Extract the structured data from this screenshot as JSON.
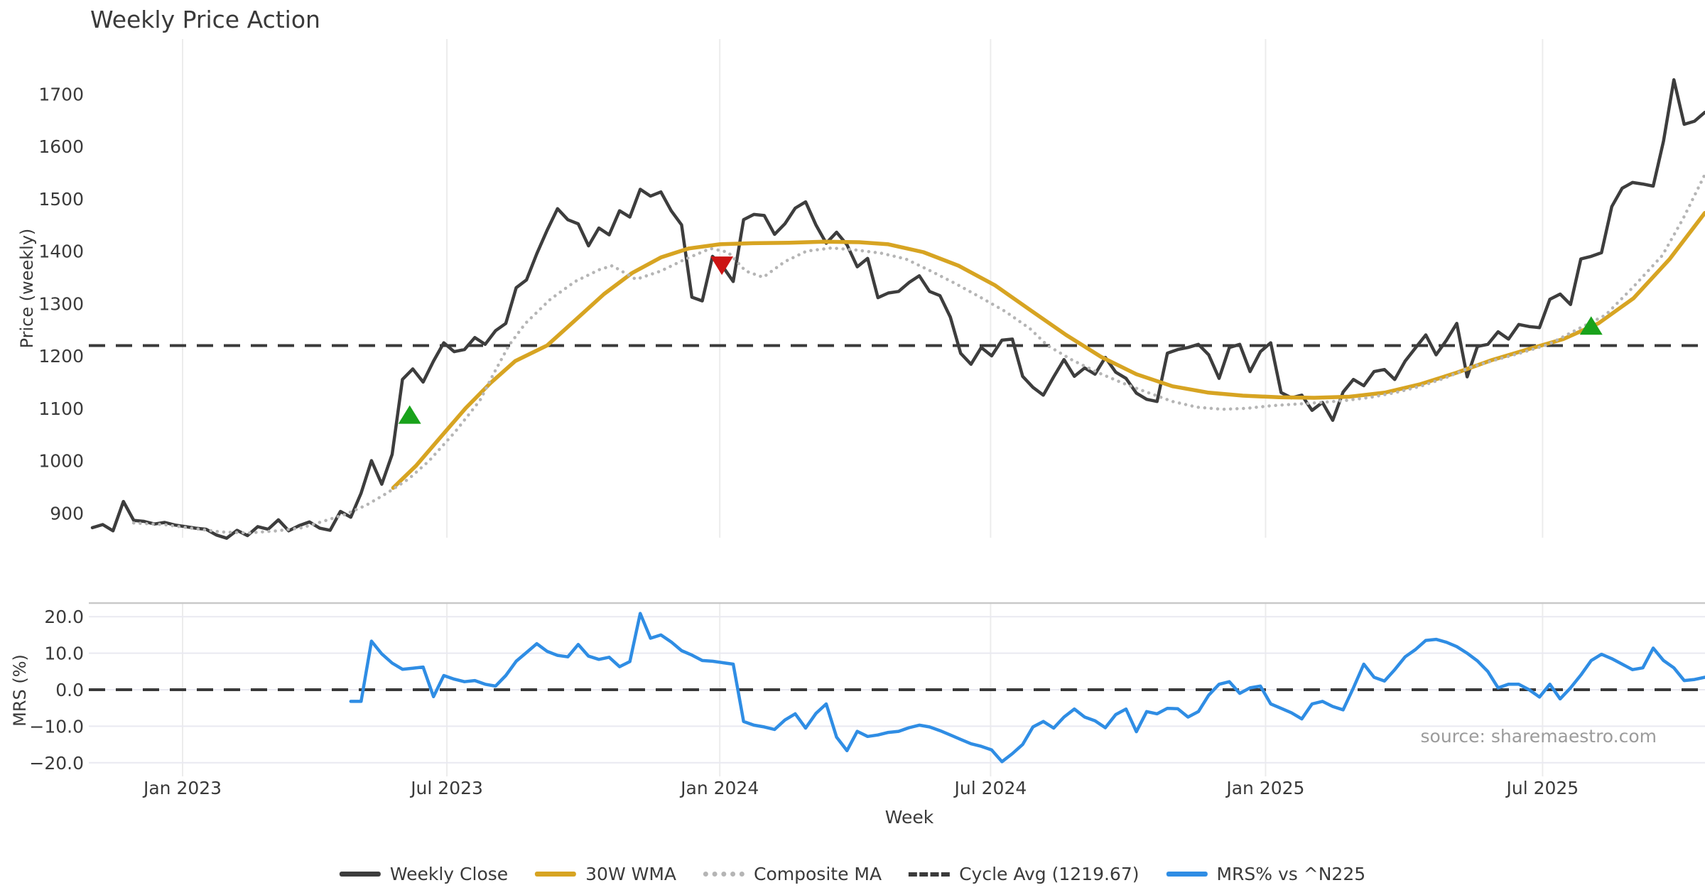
{
  "chart_data": {
    "type": "line",
    "title": "Weekly Price Action",
    "xlabel": "Week",
    "ylabel_top": "Price (weekly)",
    "ylabel_bottom": "MRS (%)",
    "source": "source: sharemaestro.com",
    "start_week": "2022-10-31",
    "weeks_total": 157,
    "ylim_top": [
      820,
      1760
    ],
    "ylim_bottom": [
      -24,
      24
    ],
    "grid": "vertical both panels, horizontal bottom panel",
    "legend_position": "bottom center",
    "cycle_avg": 1219.67,
    "x_ticks": [
      {
        "i": 8.73,
        "label": "Jan 2023"
      },
      {
        "i": 34.3,
        "label": "Jul 2023"
      },
      {
        "i": 60.7,
        "label": "Jan 2024"
      },
      {
        "i": 86.9,
        "label": "Jul 2024"
      },
      {
        "i": 113.5,
        "label": "Jan 2025"
      },
      {
        "i": 140.3,
        "label": "Jul 2025"
      }
    ],
    "y_ticks_top": [
      {
        "v": 900,
        "label": "900"
      },
      {
        "v": 1000,
        "label": "1000"
      },
      {
        "v": 1100,
        "label": "1100"
      },
      {
        "v": 1200,
        "label": "1200"
      },
      {
        "v": 1300,
        "label": "1300"
      },
      {
        "v": 1400,
        "label": "1400"
      },
      {
        "v": 1500,
        "label": "1500"
      },
      {
        "v": 1600,
        "label": "1600"
      },
      {
        "v": 1700,
        "label": "1700"
      }
    ],
    "y_ticks_bottom": [
      {
        "v": 20,
        "label": "20.0"
      },
      {
        "v": 10,
        "label": "10.0"
      },
      {
        "v": 0,
        "label": "0.0"
      },
      {
        "v": -10,
        "label": "−10.0"
      },
      {
        "v": -20,
        "label": "−20.0"
      }
    ],
    "legend": [
      {
        "label": "Weekly Close",
        "style": "solid",
        "color": "#3d3d3d"
      },
      {
        "label": "30W WMA",
        "style": "solid",
        "color": "#d7a422"
      },
      {
        "label": "Composite MA",
        "style": "dotted",
        "color": "#b5b5b5"
      },
      {
        "label": "Cycle Avg (1219.67)",
        "style": "dashed",
        "color": "#3a3a3a"
      },
      {
        "label": "MRS% vs ^N225",
        "style": "solid",
        "color": "#2f8de4"
      }
    ],
    "series": [
      {
        "name": "Weekly Close",
        "color": "#3d3d3d",
        "width": 4.5,
        "start_index": 0,
        "values": [
          872,
          878,
          866,
          922,
          886,
          884,
          879,
          882,
          877,
          874,
          871,
          869,
          858,
          852,
          867,
          857,
          874,
          869,
          887,
          866,
          876,
          883,
          871,
          867,
          903,
          892,
          938,
          1000,
          955,
          1012,
          1155,
          1175,
          1150,
          1190,
          1225,
          1208,
          1212,
          1235,
          1222,
          1248,
          1262,
          1330,
          1345,
          1395,
          1440,
          1481,
          1460,
          1452,
          1410,
          1444,
          1431,
          1477,
          1465,
          1518,
          1505,
          1513,
          1477,
          1450,
          1312,
          1305,
          1390,
          1370,
          1342,
          1460,
          1470,
          1468,
          1432,
          1452,
          1482,
          1494,
          1450,
          1415,
          1436,
          1412,
          1370,
          1386,
          1311,
          1320,
          1323,
          1340,
          1353,
          1323,
          1315,
          1274,
          1205,
          1184,
          1216,
          1200,
          1230,
          1232,
          1161,
          1140,
          1125,
          1160,
          1193,
          1161,
          1177,
          1165,
          1197,
          1169,
          1157,
          1129,
          1117,
          1113,
          1205,
          1212,
          1216,
          1222,
          1202,
          1157,
          1216,
          1222,
          1170,
          1208,
          1225,
          1130,
          1120,
          1125,
          1096,
          1111,
          1077,
          1131,
          1155,
          1143,
          1170,
          1174,
          1155,
          1190,
          1215,
          1240,
          1202,
          1230,
          1262,
          1160,
          1218,
          1222,
          1246,
          1232,
          1260,
          1256,
          1254,
          1308,
          1318,
          1298,
          1385,
          1390,
          1397,
          1485,
          1520,
          1531,
          1528,
          1524,
          1610,
          1727,
          1642,
          1648,
          1665
        ]
      },
      {
        "name": "30W WMA",
        "color": "#d7a422",
        "width": 5.5,
        "note": "30-week weighted moving average of close",
        "points": [
          [
            29.1,
            948
          ],
          [
            31.3,
            990
          ],
          [
            33.7,
            1045
          ],
          [
            36.1,
            1100
          ],
          [
            38.5,
            1148
          ],
          [
            40.9,
            1190
          ],
          [
            44.0,
            1220
          ],
          [
            46.7,
            1268
          ],
          [
            49.5,
            1318
          ],
          [
            52.2,
            1358
          ],
          [
            55.0,
            1388
          ],
          [
            57.7,
            1405
          ],
          [
            60.7,
            1413
          ],
          [
            63.9,
            1415
          ],
          [
            67.4,
            1416
          ],
          [
            70.8,
            1418
          ],
          [
            74.2,
            1417
          ],
          [
            77.0,
            1413
          ],
          [
            80.4,
            1398
          ],
          [
            83.8,
            1372
          ],
          [
            87.3,
            1335
          ],
          [
            90.7,
            1288
          ],
          [
            94.2,
            1240
          ],
          [
            97.6,
            1198
          ],
          [
            101.0,
            1165
          ],
          [
            104.5,
            1142
          ],
          [
            107.9,
            1130
          ],
          [
            111.3,
            1124
          ],
          [
            114.8,
            1121
          ],
          [
            118.2,
            1120
          ],
          [
            121.6,
            1122
          ],
          [
            125.1,
            1130
          ],
          [
            128.5,
            1146
          ],
          [
            132.0,
            1168
          ],
          [
            135.4,
            1192
          ],
          [
            138.8,
            1212
          ],
          [
            142.3,
            1232
          ],
          [
            145.7,
            1262
          ],
          [
            149.1,
            1310
          ],
          [
            152.6,
            1385
          ],
          [
            156.0,
            1473
          ]
        ]
      },
      {
        "name": "Composite MA",
        "color": "#b5b5b5",
        "width": 4.5,
        "dotted": true,
        "points": [
          [
            4.0,
            881
          ],
          [
            6.9,
            878
          ],
          [
            9.6,
            871
          ],
          [
            12.4,
            864
          ],
          [
            15.1,
            862
          ],
          [
            17.9,
            866
          ],
          [
            20.3,
            872
          ],
          [
            22.3,
            884
          ],
          [
            24.4,
            897
          ],
          [
            26.5,
            915
          ],
          [
            28.5,
            938
          ],
          [
            30.6,
            965
          ],
          [
            32.6,
            1000
          ],
          [
            35.1,
            1055
          ],
          [
            37.5,
            1115
          ],
          [
            38.8,
            1165
          ],
          [
            40.3,
            1220
          ],
          [
            41.9,
            1262
          ],
          [
            44.3,
            1308
          ],
          [
            46.7,
            1342
          ],
          [
            49.1,
            1365
          ],
          [
            50.3,
            1372
          ],
          [
            52.6,
            1346
          ],
          [
            55.0,
            1362
          ],
          [
            57.4,
            1385
          ],
          [
            59.8,
            1405
          ],
          [
            61.5,
            1398
          ],
          [
            63.2,
            1362
          ],
          [
            64.9,
            1350
          ],
          [
            67.0,
            1380
          ],
          [
            69.1,
            1400
          ],
          [
            71.5,
            1406
          ],
          [
            73.9,
            1402
          ],
          [
            76.3,
            1396
          ],
          [
            78.7,
            1385
          ],
          [
            81.1,
            1362
          ],
          [
            83.5,
            1338
          ],
          [
            85.9,
            1312
          ],
          [
            88.3,
            1285
          ],
          [
            90.7,
            1252
          ],
          [
            92.4,
            1220
          ],
          [
            94.8,
            1192
          ],
          [
            97.3,
            1168
          ],
          [
            99.7,
            1148
          ],
          [
            102.1,
            1130
          ],
          [
            104.5,
            1113
          ],
          [
            106.9,
            1102
          ],
          [
            109.3,
            1098
          ],
          [
            111.7,
            1100
          ],
          [
            114.1,
            1105
          ],
          [
            116.5,
            1108
          ],
          [
            118.9,
            1111
          ],
          [
            121.3,
            1115
          ],
          [
            123.7,
            1121
          ],
          [
            126.1,
            1130
          ],
          [
            128.5,
            1142
          ],
          [
            130.9,
            1158
          ],
          [
            133.3,
            1178
          ],
          [
            135.7,
            1192
          ],
          [
            138.1,
            1205
          ],
          [
            140.9,
            1222
          ],
          [
            143.6,
            1250
          ],
          [
            146.4,
            1278
          ],
          [
            149.1,
            1332
          ],
          [
            151.9,
            1392
          ],
          [
            153.9,
            1462
          ],
          [
            156.0,
            1546
          ]
        ]
      },
      {
        "name": "MRS% vs ^N225",
        "color": "#2f8de4",
        "width": 4.5,
        "start_index": 25,
        "panel": "bottom",
        "values": [
          -3.2,
          -3.2,
          13.3,
          9.8,
          7.3,
          5.6,
          5.9,
          6.2,
          -1.9,
          3.9,
          2.9,
          2.2,
          2.5,
          1.5,
          1.0,
          3.9,
          7.8,
          10.2,
          12.6,
          10.5,
          9.4,
          9.0,
          12.4,
          9.2,
          8.3,
          8.9,
          6.3,
          7.7,
          20.9,
          14.1,
          15.0,
          13.1,
          10.7,
          9.5,
          8.0,
          7.8,
          7.4,
          7.0,
          -8.7,
          -9.7,
          -10.2,
          -10.9,
          -8.3,
          -6.6,
          -10.5,
          -6.5,
          -3.9,
          -13.0,
          -16.7,
          -11.4,
          -12.8,
          -12.4,
          -11.7,
          -11.4,
          -10.4,
          -9.7,
          -10.2,
          -11.2,
          -12.4,
          -13.6,
          -14.8,
          -15.5,
          -16.5,
          -19.7,
          -17.5,
          -15.0,
          -10.2,
          -8.7,
          -10.5,
          -7.5,
          -5.3,
          -7.5,
          -8.5,
          -10.4,
          -6.8,
          -5.3,
          -11.5,
          -6.0,
          -6.6,
          -5.1,
          -5.2,
          -7.5,
          -6.0,
          -1.5,
          1.5,
          2.2,
          -1.0,
          0.5,
          1.0,
          -3.9,
          -5.1,
          -6.3,
          -8.0,
          -3.9,
          -3.2,
          -4.6,
          -5.5,
          0.5,
          7.0,
          3.4,
          2.4,
          5.5,
          9.0,
          11.0,
          13.5,
          13.8,
          13.0,
          11.8,
          10.0,
          7.9,
          5.0,
          0.5,
          1.5,
          1.5,
          0.0,
          -2.0,
          1.5,
          -2.5,
          0.5,
          4.0,
          8.0,
          9.7,
          8.5,
          7.0,
          5.5,
          6.0,
          11.4,
          8.0,
          6.0,
          2.5,
          2.8,
          3.4
        ]
      }
    ],
    "markers": [
      {
        "name": "buy-signal-1",
        "shape": "triangle-up",
        "color": "#19a21b",
        "i": 30.7,
        "price": 1088
      },
      {
        "name": "sell-signal-1",
        "shape": "triangle-down",
        "color": "#cc1414",
        "i": 60.9,
        "price": 1372
      },
      {
        "name": "buy-signal-2",
        "shape": "triangle-up",
        "color": "#19a21b",
        "i": 145.0,
        "price": 1258
      }
    ]
  }
}
